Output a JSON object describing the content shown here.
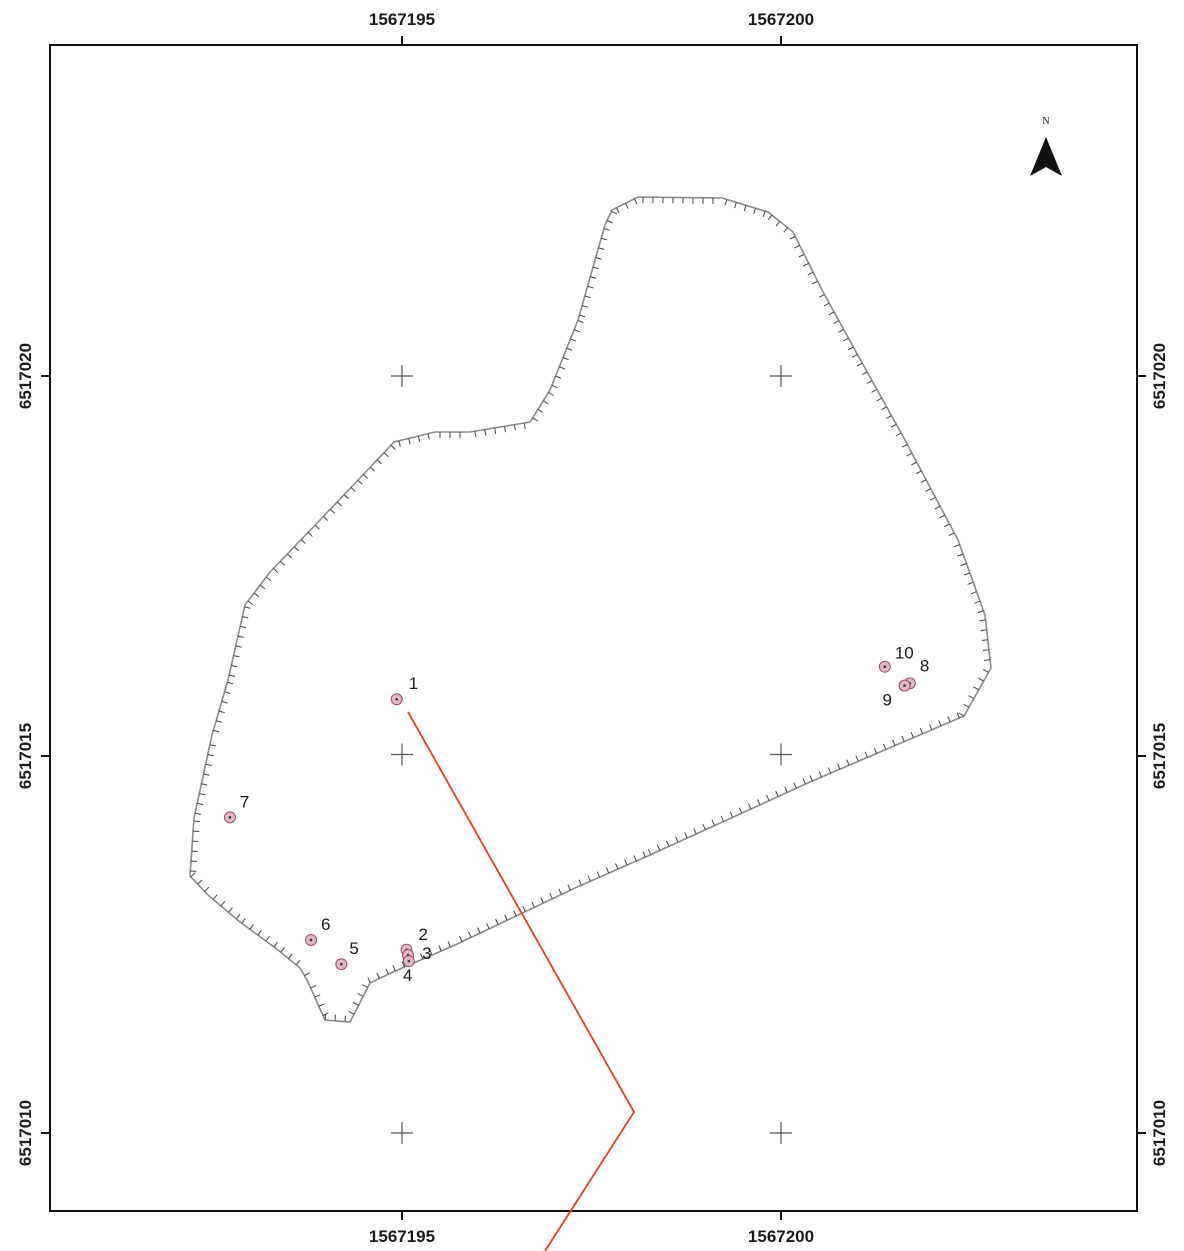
{
  "map": {
    "x_ticks": {
      "top": [
        "1567195",
        "1567200"
      ],
      "bottom": [
        "1567195",
        "1567200"
      ]
    },
    "y_ticks": {
      "left": [
        "6517020",
        "6517015",
        "6517010"
      ],
      "right": [
        "6517020",
        "6517015",
        "6517010"
      ]
    },
    "grid_crosses": [
      {
        "easting": 1567195,
        "northing": 6517020
      },
      {
        "easting": 1567200,
        "northing": 6517020
      },
      {
        "easting": 1567195,
        "northing": 6517015
      },
      {
        "easting": 1567200,
        "northing": 6517015
      },
      {
        "easting": 1567195,
        "northing": 6517010
      },
      {
        "easting": 1567200,
        "northing": 6517010
      }
    ],
    "north_arrow_label": "N",
    "sites": [
      {
        "label": "1",
        "easting": 1567194.93,
        "northing": 6517015.73
      },
      {
        "label": "2",
        "easting": 1567195.06,
        "northing": 6517012.42
      },
      {
        "label": "3",
        "easting": 1567195.08,
        "northing": 6517012.35
      },
      {
        "label": "4",
        "easting": 1567195.09,
        "northing": 6517012.27
      },
      {
        "label": "5",
        "easting": 1567194.2,
        "northing": 6517012.23
      },
      {
        "label": "6",
        "easting": 1567193.8,
        "northing": 6517012.55
      },
      {
        "label": "7",
        "easting": 1567192.73,
        "northing": 6517014.17
      },
      {
        "label": "8",
        "easting": 1567201.7,
        "northing": 6517015.94
      },
      {
        "label": "9",
        "easting": 1567201.63,
        "northing": 6517015.91
      },
      {
        "label": "10",
        "easting": 1567201.37,
        "northing": 6517016.16
      }
    ],
    "colors": {
      "site_fill": "#e3b6c8",
      "site_stroke": "#9a4a6a",
      "section_line": "#e8401f",
      "boundary": "#8a8a8a"
    }
  }
}
